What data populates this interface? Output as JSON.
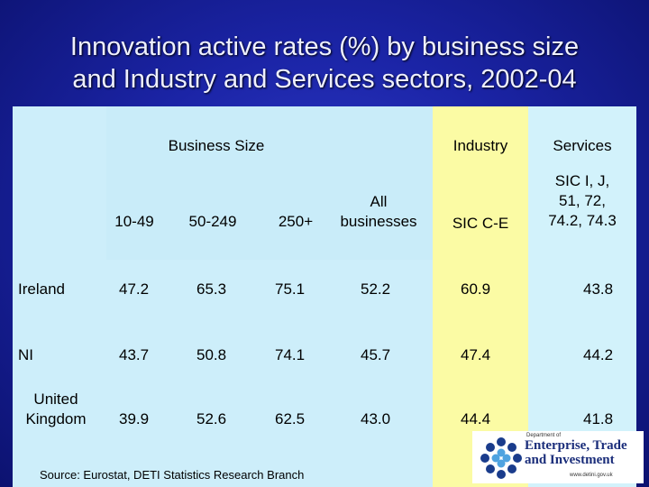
{
  "title_line1": "Innovation active rates (%) by business size",
  "title_line2": "and Industry and Services sectors, 2002-04",
  "groups": {
    "business_size": "Business Size",
    "industry": "Industry",
    "services": "Services"
  },
  "columns": {
    "c1": "10-49",
    "c2": "50-249",
    "c3": "250+",
    "c4a": "All",
    "c4b": "businesses",
    "c5": "SIC C-E",
    "c6a": "SIC I, J,",
    "c6b": "51, 72,",
    "c6c": "74.2, 74.3"
  },
  "rows": [
    {
      "label": "Ireland",
      "values": [
        "47.2",
        "65.3",
        "75.1",
        "52.2",
        "60.9",
        "43.8"
      ]
    },
    {
      "label": "NI",
      "values": [
        "43.7",
        "50.8",
        "74.1",
        "45.7",
        "47.4",
        "44.2"
      ]
    },
    {
      "label_line1": "United",
      "label_line2": "Kingdom",
      "values": [
        "39.9",
        "52.6",
        "62.5",
        "43.0",
        "44.4",
        "41.8"
      ]
    }
  ],
  "source": "Source: Eurostat, DETI Statistics Research Branch",
  "logo": {
    "top_text": "Department of",
    "line1": "Enterprise, Trade",
    "line2": "and Investment",
    "url": "www.detini.gov.uk"
  },
  "colors": {
    "background": "#1b24a6",
    "industry_band": "#fbfba4",
    "panel": "#cdeefa",
    "logo_navy": "#1a2d7a"
  }
}
